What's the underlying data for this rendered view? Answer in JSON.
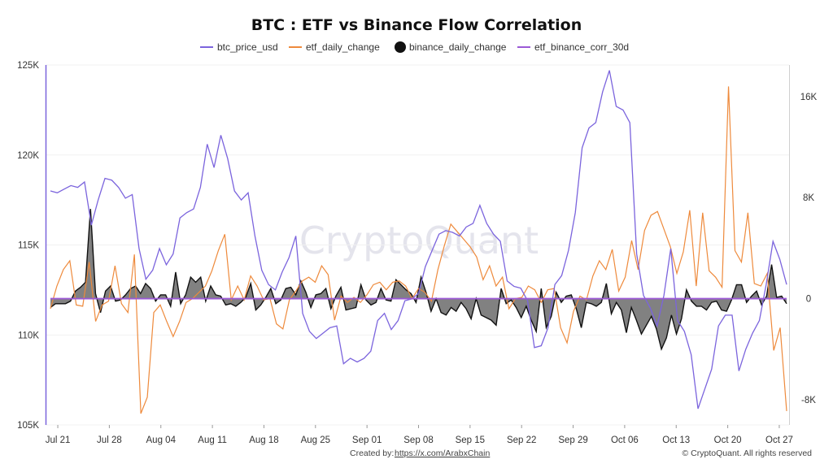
{
  "title": "BTC : ETF vs Binance Flow Correlation",
  "footer": {
    "created_by_label": "Created by:",
    "created_by_link": "https://x.com/ArabxChain",
    "copyright": "© CryptoQuant. All rights reserved"
  },
  "watermark": "CryptoQuant",
  "colors": {
    "btc_price": "#7b64dd",
    "etf": "#ee8a3c",
    "binance_line": "#111111",
    "binance_fill": "#7a7a7a",
    "corr": "#9b59d6",
    "left_axis": "#7b64dd"
  },
  "chart_data": {
    "type": "line",
    "title": "BTC : ETF vs Binance Flow Correlation",
    "legend": [
      "btc_price_usd",
      "etf_daily_change",
      "binance_daily_change",
      "etf_binance_corr_30d"
    ],
    "legend_position": "top",
    "x_start": "Jul 20",
    "x_tick_labels": [
      "Jul 21",
      "Jul 28",
      "Aug 04",
      "Aug 11",
      "Aug 18",
      "Aug 25",
      "Sep 01",
      "Sep 08",
      "Sep 15",
      "Sep 22",
      "Sep 29",
      "Oct 06",
      "Oct 13",
      "Oct 20",
      "Oct 27"
    ],
    "y_left": {
      "ticks": [
        "105K",
        "110K",
        "115K",
        "120K",
        "125K"
      ],
      "range": [
        105000,
        125000
      ]
    },
    "y_right": {
      "ticks": [
        "-8K",
        "0",
        "8K",
        "16K"
      ],
      "range": [
        -10000,
        18500
      ]
    },
    "grid": true,
    "series": [
      {
        "name": "btc_price_usd",
        "axis": "left",
        "values": [
          118000,
          117900,
          118100,
          118300,
          118200,
          118500,
          116100,
          117500,
          118700,
          118600,
          118200,
          117600,
          117800,
          114800,
          113100,
          113600,
          114800,
          113900,
          114500,
          116500,
          116800,
          117000,
          118200,
          120600,
          119300,
          121100,
          119800,
          118000,
          117500,
          117900,
          115500,
          113600,
          112800,
          112500,
          113500,
          114300,
          115500,
          111200,
          110200,
          109800,
          110100,
          110400,
          110500,
          108400,
          108700,
          108500,
          108700,
          109100,
          110800,
          111200,
          110300,
          110800,
          111900,
          112000,
          112300,
          113800,
          114700,
          115600,
          115800,
          115700,
          115500,
          116000,
          116200,
          117200,
          116200,
          115600,
          115200,
          113000,
          112700,
          112600,
          111900,
          109300,
          109400,
          110400,
          112800,
          113300,
          114700,
          116800,
          120400,
          121500,
          121800,
          123500,
          124700,
          122700,
          122500,
          121800,
          114500,
          112200,
          111500,
          110500,
          112200,
          114800,
          110800,
          110200,
          108900,
          105900,
          107000,
          108100,
          110500,
          111100,
          111100,
          108000,
          109200,
          110100,
          110800,
          112800,
          115200,
          114200,
          112800
        ]
      },
      {
        "name": "etf_daily_change",
        "axis": "right",
        "values": [
          -800,
          1000,
          2300,
          3000,
          -500,
          -600,
          2900,
          -1800,
          -500,
          -200,
          2600,
          -400,
          -1100,
          3500,
          -9100,
          -7800,
          -1100,
          -500,
          -1800,
          -3000,
          -1800,
          -300,
          0,
          500,
          1000,
          2200,
          3800,
          5100,
          -100,
          1000,
          -100,
          1800,
          1000,
          -100,
          0,
          -2000,
          -2400,
          -100,
          600,
          1400,
          1700,
          1300,
          2600,
          1900,
          -1700,
          200,
          -300,
          100,
          -300,
          300,
          1100,
          1300,
          700,
          1300,
          1400,
          1000,
          0,
          800,
          500,
          -200,
          2300,
          4200,
          5900,
          5300,
          4700,
          4100,
          3300,
          1500,
          2600,
          1000,
          1700,
          -800,
          0,
          100,
          1000,
          700,
          -300,
          700,
          800,
          -2300,
          -3500,
          -1000,
          200,
          -100,
          1800,
          3000,
          2300,
          3900,
          600,
          1700,
          4600,
          2300,
          5400,
          6600,
          6900,
          5500,
          4100,
          2000,
          3700,
          7000,
          1000,
          6800,
          2200,
          1700,
          900,
          16800,
          3800,
          2900,
          6800,
          1200,
          1000,
          2000,
          -4100,
          -2300,
          -8900
        ]
      },
      {
        "name": "binance_daily_change",
        "axis": "right",
        "values": [
          -700,
          -400,
          -400,
          -400,
          -200,
          600,
          900,
          1300,
          7100,
          400,
          -1100,
          600,
          1000,
          -200,
          -100,
          300,
          800,
          1000,
          400,
          1200,
          800,
          -200,
          300,
          300,
          -600,
          2100,
          -400,
          300,
          1700,
          1300,
          1700,
          -200,
          1000,
          300,
          200,
          -500,
          -400,
          -600,
          -300,
          100,
          1200,
          -900,
          -500,
          100,
          800,
          -400,
          -100,
          800,
          900,
          300,
          1400,
          500,
          -700,
          300,
          400,
          800,
          -800,
          200,
          900,
          -900,
          -800,
          -700,
          1100,
          -100,
          -500,
          -300,
          800,
          -100,
          -200,
          1500,
          1100,
          700,
          400,
          -300,
          1700,
          500,
          -1000,
          0,
          -1100,
          -1300,
          -700,
          -1000,
          -300,
          -800,
          -1600,
          0,
          -1300,
          -1500,
          -1700,
          -2100,
          800,
          -400,
          -100,
          -700,
          -1500,
          -600,
          -1700,
          -2600,
          800,
          -2300,
          -1400,
          500,
          -300,
          200,
          300,
          -800,
          -2300,
          -300,
          -400,
          -600,
          -300,
          1200,
          -1200,
          -300,
          -900,
          -2700,
          -700,
          -1700,
          -2800,
          -2100,
          -1400,
          -2400,
          -4000,
          -3100,
          -1300,
          -2800,
          -1600,
          700,
          -200,
          -600,
          -600,
          -900,
          -300,
          -200,
          -900,
          -1000,
          -100,
          1100,
          1100,
          -300,
          200,
          600,
          -500,
          200,
          2700,
          100,
          200,
          -400
        ]
      },
      {
        "name": "etf_binance_corr_30d",
        "axis": "right",
        "values": [
          0,
          0,
          0,
          0,
          0,
          0,
          0,
          0,
          0,
          0
        ]
      }
    ]
  }
}
